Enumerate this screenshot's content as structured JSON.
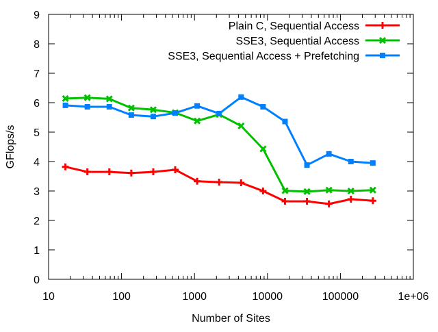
{
  "chart_data": {
    "type": "line",
    "title": "",
    "xlabel": "Number of Sites",
    "ylabel": "GFlops/s",
    "xscale": "log",
    "xlim": [
      10,
      1000000
    ],
    "ylim": [
      0,
      9
    ],
    "x_ticks": [
      {
        "value": 10,
        "label": "10"
      },
      {
        "value": 100,
        "label": "100"
      },
      {
        "value": 1000,
        "label": "1000"
      },
      {
        "value": 10000,
        "label": "10000"
      },
      {
        "value": 100000,
        "label": "100000"
      },
      {
        "value": 1000000,
        "label": "1e+06"
      }
    ],
    "y_ticks": [
      {
        "value": 0,
        "label": "0"
      },
      {
        "value": 1,
        "label": "1"
      },
      {
        "value": 2,
        "label": "2"
      },
      {
        "value": 3,
        "label": "3"
      },
      {
        "value": 4,
        "label": "4"
      },
      {
        "value": 5,
        "label": "5"
      },
      {
        "value": 6,
        "label": "6"
      },
      {
        "value": 7,
        "label": "7"
      },
      {
        "value": 8,
        "label": "8"
      },
      {
        "value": 9,
        "label": "9"
      }
    ],
    "grid": false,
    "legend_position": "top-right",
    "x": [
      17,
      34,
      68,
      136,
      272,
      544,
      1088,
      2176,
      4352,
      8704,
      17408,
      34816,
      69632,
      139264,
      278528
    ],
    "series": [
      {
        "name": "Plain C, Sequential Access",
        "color": "#ff0000",
        "marker": "plus",
        "values": [
          3.82,
          3.65,
          3.65,
          3.61,
          3.65,
          3.72,
          3.33,
          3.3,
          3.28,
          3.0,
          2.65,
          2.65,
          2.56,
          2.72,
          2.67
        ]
      },
      {
        "name": "SSE3, Sequential Access",
        "color": "#00c000",
        "marker": "cross",
        "values": [
          6.14,
          6.17,
          6.13,
          5.82,
          5.76,
          5.66,
          5.38,
          5.6,
          5.21,
          4.43,
          3.01,
          2.98,
          3.03,
          3.0,
          3.03
        ]
      },
      {
        "name": "SSE3, Sequential Access + Prefetching",
        "color": "#0080ff",
        "marker": "square",
        "values": [
          5.91,
          5.86,
          5.86,
          5.58,
          5.53,
          5.65,
          5.89,
          5.63,
          6.19,
          5.86,
          5.36,
          3.88,
          4.26,
          4.0,
          3.95
        ]
      }
    ]
  }
}
